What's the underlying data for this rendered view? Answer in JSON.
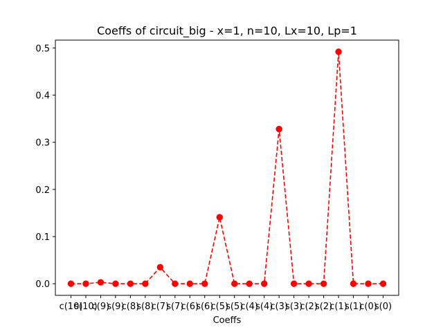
{
  "chart_data": {
    "type": "line",
    "title": "Coeffs of circuit_big - x=1, n=10, Lx=10, Lp=1",
    "xlabel": "Coeffs",
    "ylabel": "",
    "categories": [
      "c(10)",
      "s(10)",
      "c(9)",
      "s(9)",
      "c(8)",
      "s(8)",
      "c(7)",
      "s(7)",
      "c(6)",
      "s(6)",
      "c(5)",
      "s(5)",
      "c(4)",
      "s(4)",
      "c(3)",
      "s(3)",
      "c(2)",
      "s(2)",
      "c(1)",
      "s(1)",
      "c(0)",
      "s(0)"
    ],
    "values": [
      0.0,
      0.0,
      0.003,
      0.0,
      0.0,
      0.0,
      0.035,
      0.0,
      0.0,
      0.0,
      0.141,
      0.0,
      0.0,
      0.0,
      0.328,
      0.0,
      0.0,
      0.0,
      0.492,
      0.0,
      0.0,
      0.0
    ],
    "ylim": [
      -0.0246,
      0.5166
    ],
    "yticks": [
      0.0,
      0.1,
      0.2,
      0.3,
      0.4,
      0.5
    ],
    "ytick_labels": [
      "0.0",
      "0.1",
      "0.2",
      "0.3",
      "0.4",
      "0.5"
    ],
    "series_color": "#ff0000",
    "line_style": "dashed",
    "marker": "circle",
    "grid": false
  }
}
